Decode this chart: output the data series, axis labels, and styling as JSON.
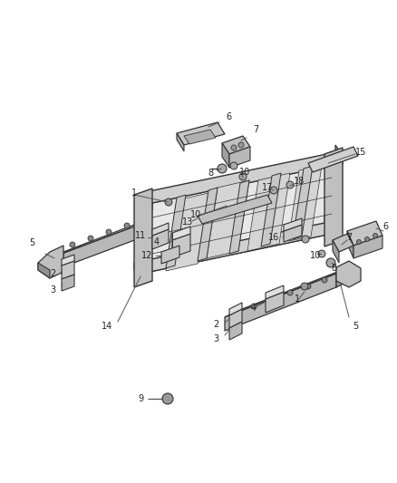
{
  "bg_color": "#ffffff",
  "lc": "#555555",
  "dc": "#333333",
  "fig_width": 4.38,
  "fig_height": 5.33,
  "dpi": 100
}
